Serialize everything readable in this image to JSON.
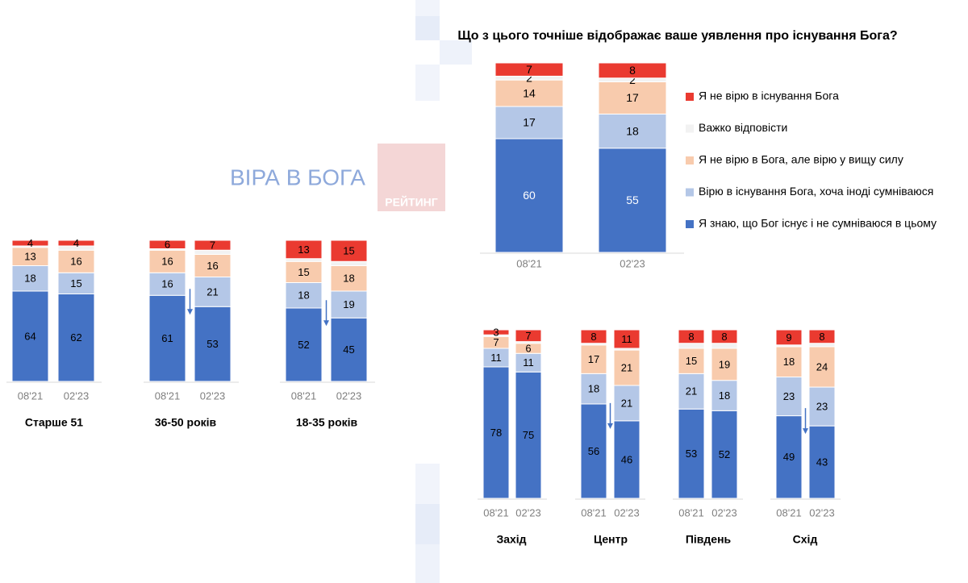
{
  "header": {
    "title": "ВІРА В БОГА",
    "logo": "РЕЙТИНГ"
  },
  "chart_data": [
    {
      "type": "stacked_bar",
      "title": "Що з цього точніше відображає ваше уявлення про існування Бога?",
      "categories": [
        "08'21",
        "02'23"
      ],
      "ylim": [
        0,
        100
      ],
      "legend": "right",
      "series": [
        {
          "name": "Я знаю, що Бог існує і не сумніваюся в цьому",
          "color": "#4472c4",
          "label_color": "#ffffff",
          "values": [
            60,
            55
          ]
        },
        {
          "name": "Вірю в існування Бога, хоча іноді сумніваюся",
          "color": "#b4c7e7",
          "label_color": "#000000",
          "values": [
            17,
            18
          ]
        },
        {
          "name": "Я не вірю в Бога, але вірю у вищу силу",
          "color": "#f8cbad",
          "label_color": "#000000",
          "values": [
            14,
            17
          ]
        },
        {
          "name": "Важко відповісти",
          "color": "#f2f2f2",
          "label_color": "#000000",
          "values": [
            2,
            2
          ]
        },
        {
          "name": "Я не вірю в існування Бога",
          "color": "#ea3a30",
          "label_color": "#000000",
          "values": [
            7,
            8
          ]
        }
      ]
    },
    {
      "type": "stacked_bar",
      "title": "Старше 51",
      "categories": [
        "08'21",
        "02'23"
      ],
      "ylim": [
        0,
        100
      ],
      "decline_arrow": false,
      "series": [
        {
          "color": "#4472c4",
          "label_color": "#000000",
          "values": [
            64,
            62
          ]
        },
        {
          "color": "#b4c7e7",
          "label_color": "#000000",
          "values": [
            18,
            15
          ]
        },
        {
          "color": "#f8cbad",
          "label_color": "#000000",
          "values": [
            13,
            16
          ]
        },
        {
          "color": "#f2f2f2",
          "labels": false,
          "values": [
            1,
            3
          ]
        },
        {
          "color": "#ea3a30",
          "label_color": "#000000",
          "values": [
            4,
            4
          ]
        }
      ]
    },
    {
      "type": "stacked_bar",
      "title": "36-50 років",
      "categories": [
        "08'21",
        "02'23"
      ],
      "ylim": [
        0,
        100
      ],
      "decline_arrow": true,
      "series": [
        {
          "color": "#4472c4",
          "label_color": "#000000",
          "values": [
            61,
            53
          ]
        },
        {
          "color": "#b4c7e7",
          "label_color": "#000000",
          "values": [
            16,
            21
          ]
        },
        {
          "color": "#f8cbad",
          "label_color": "#000000",
          "values": [
            16,
            16
          ]
        },
        {
          "color": "#f2f2f2",
          "labels": false,
          "values": [
            1,
            3
          ]
        },
        {
          "color": "#ea3a30",
          "label_color": "#000000",
          "values": [
            6,
            7
          ]
        }
      ]
    },
    {
      "type": "stacked_bar",
      "title": "18-35 років",
      "categories": [
        "08'21",
        "02'23"
      ],
      "ylim": [
        0,
        100
      ],
      "decline_arrow": true,
      "series": [
        {
          "color": "#4472c4",
          "label_color": "#000000",
          "values": [
            52,
            45
          ]
        },
        {
          "color": "#b4c7e7",
          "label_color": "#000000",
          "values": [
            18,
            19
          ]
        },
        {
          "color": "#f8cbad",
          "label_color": "#000000",
          "values": [
            15,
            18
          ]
        },
        {
          "color": "#f2f2f2",
          "labels": false,
          "values": [
            2,
            3
          ]
        },
        {
          "color": "#ea3a30",
          "label_color": "#000000",
          "values": [
            13,
            15
          ]
        }
      ]
    },
    {
      "type": "stacked_bar",
      "title": "Захід",
      "categories": [
        "08'21",
        "02'23"
      ],
      "ylim": [
        0,
        100
      ],
      "decline_arrow": false,
      "series": [
        {
          "color": "#4472c4",
          "label_color": "#000000",
          "values": [
            78,
            75
          ]
        },
        {
          "color": "#b4c7e7",
          "label_color": "#000000",
          "values": [
            11,
            11
          ]
        },
        {
          "color": "#f8cbad",
          "label_color": "#000000",
          "values": [
            7,
            6
          ]
        },
        {
          "color": "#f2f2f2",
          "labels": false,
          "values": [
            1,
            1
          ]
        },
        {
          "color": "#ea3a30",
          "label_color": "#000000",
          "values": [
            3,
            7
          ]
        }
      ]
    },
    {
      "type": "stacked_bar",
      "title": "Центр",
      "categories": [
        "08'21",
        "02'23"
      ],
      "ylim": [
        0,
        100
      ],
      "decline_arrow": true,
      "series": [
        {
          "color": "#4472c4",
          "label_color": "#000000",
          "values": [
            56,
            46
          ]
        },
        {
          "color": "#b4c7e7",
          "label_color": "#000000",
          "values": [
            18,
            21
          ]
        },
        {
          "color": "#f8cbad",
          "label_color": "#000000",
          "values": [
            17,
            21
          ]
        },
        {
          "color": "#f2f2f2",
          "labels": false,
          "values": [
            1,
            1
          ]
        },
        {
          "color": "#ea3a30",
          "label_color": "#000000",
          "values": [
            8,
            11
          ]
        }
      ]
    },
    {
      "type": "stacked_bar",
      "title": "Південь",
      "categories": [
        "08'21",
        "02'23"
      ],
      "ylim": [
        0,
        100
      ],
      "decline_arrow": false,
      "series": [
        {
          "color": "#4472c4",
          "label_color": "#000000",
          "values": [
            53,
            52
          ]
        },
        {
          "color": "#b4c7e7",
          "label_color": "#000000",
          "values": [
            21,
            18
          ]
        },
        {
          "color": "#f8cbad",
          "label_color": "#000000",
          "values": [
            15,
            19
          ]
        },
        {
          "color": "#f2f2f2",
          "labels": false,
          "values": [
            3,
            3
          ]
        },
        {
          "color": "#ea3a30",
          "label_color": "#000000",
          "values": [
            8,
            8
          ]
        }
      ]
    },
    {
      "type": "stacked_bar",
      "title": "Схід",
      "categories": [
        "08'21",
        "02'23"
      ],
      "ylim": [
        0,
        100
      ],
      "decline_arrow": true,
      "series": [
        {
          "color": "#4472c4",
          "label_color": "#000000",
          "values": [
            49,
            43
          ]
        },
        {
          "color": "#b4c7e7",
          "label_color": "#000000",
          "values": [
            23,
            23
          ]
        },
        {
          "color": "#f8cbad",
          "label_color": "#000000",
          "values": [
            18,
            24
          ]
        },
        {
          "color": "#f2f2f2",
          "labels": false,
          "values": [
            1,
            2
          ]
        },
        {
          "color": "#ea3a30",
          "label_color": "#000000",
          "values": [
            9,
            8
          ]
        }
      ]
    }
  ]
}
